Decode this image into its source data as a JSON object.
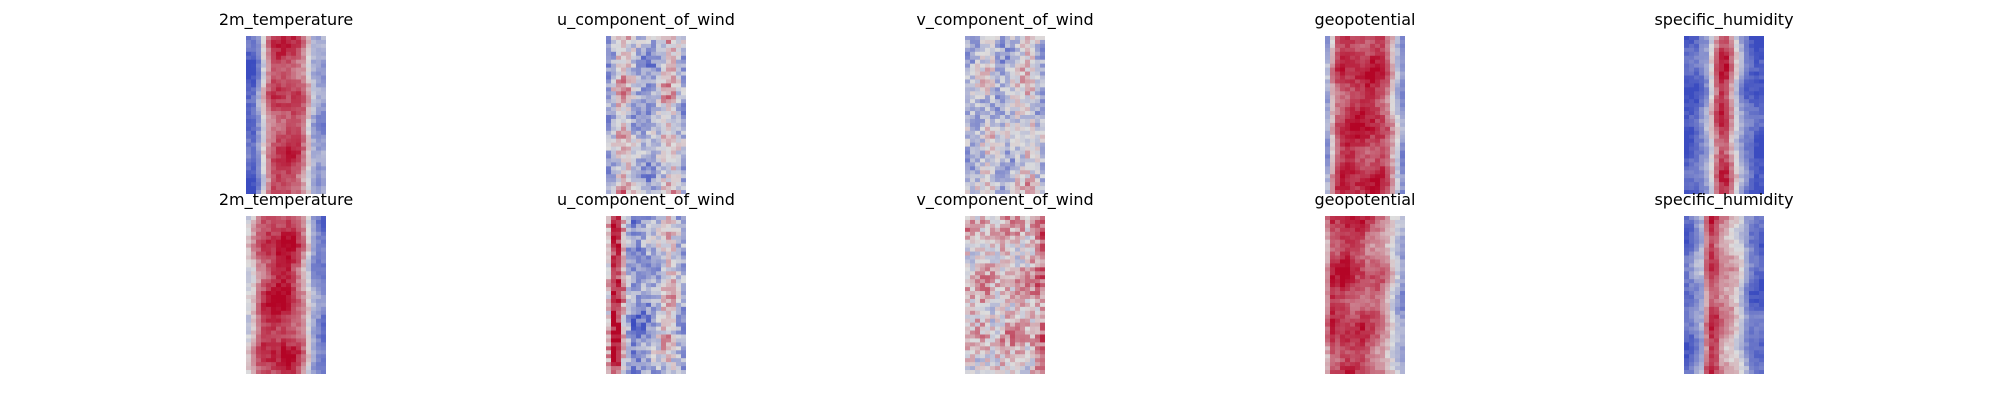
{
  "chart_data": {
    "type": "heatmap",
    "colormap": "coolwarm",
    "colors": {
      "low": "#3b4cc0",
      "mid": "#dddddd",
      "high": "#b40426"
    },
    "axes_visible": false,
    "grid": false,
    "legend": "none",
    "rows": [
      {
        "panels": [
          {
            "title": "2m_temperature",
            "profile": [
              0.1,
              0.05,
              0.25,
              0.55,
              0.8,
              0.85,
              0.85,
              0.85,
              0.85,
              0.8,
              0.6,
              0.35,
              0.25,
              0.3
            ]
          },
          {
            "title": "u_component_of_wind",
            "profile": [
              0.25,
              0.35,
              0.55,
              0.65,
              0.45,
              0.35,
              0.3,
              0.3,
              0.35,
              0.45,
              0.6,
              0.55,
              0.4,
              0.3
            ]
          },
          {
            "title": "v_component_of_wind",
            "profile": [
              0.4,
              0.35,
              0.4,
              0.45,
              0.5,
              0.4,
              0.35,
              0.4,
              0.45,
              0.5,
              0.55,
              0.5,
              0.4,
              0.35
            ]
          },
          {
            "title": "geopotential",
            "profile": [
              0.15,
              0.55,
              0.8,
              0.88,
              0.9,
              0.9,
              0.9,
              0.9,
              0.9,
              0.88,
              0.8,
              0.6,
              0.35,
              0.2
            ]
          },
          {
            "title": "specific_humidity",
            "profile": [
              0.05,
              0.05,
              0.1,
              0.2,
              0.35,
              0.7,
              0.9,
              0.85,
              0.6,
              0.35,
              0.2,
              0.1,
              0.05,
              0.05
            ]
          }
        ]
      },
      {
        "panels": [
          {
            "title": "2m_temperature",
            "profile": [
              0.45,
              0.55,
              0.75,
              0.85,
              0.9,
              0.92,
              0.95,
              0.92,
              0.85,
              0.75,
              0.55,
              0.3,
              0.2,
              0.15
            ]
          },
          {
            "title": "u_component_of_wind",
            "profile": [
              0.3,
              0.95,
              0.9,
              0.55,
              0.25,
              0.2,
              0.25,
              0.3,
              0.35,
              0.45,
              0.6,
              0.5,
              0.35,
              0.3
            ]
          },
          {
            "title": "v_component_of_wind",
            "profile": [
              0.6,
              0.55,
              0.55,
              0.6,
              0.55,
              0.5,
              0.55,
              0.6,
              0.55,
              0.6,
              0.55,
              0.6,
              0.7,
              0.75
            ]
          },
          {
            "title": "geopotential",
            "profile": [
              0.55,
              0.9,
              0.85,
              0.9,
              0.88,
              0.85,
              0.85,
              0.8,
              0.78,
              0.75,
              0.65,
              0.5,
              0.35,
              0.25
            ]
          },
          {
            "title": "specific_humidity",
            "profile": [
              0.1,
              0.15,
              0.25,
              0.35,
              0.9,
              0.85,
              0.7,
              0.65,
              0.6,
              0.5,
              0.3,
              0.15,
              0.1,
              0.1
            ]
          }
        ]
      }
    ]
  }
}
